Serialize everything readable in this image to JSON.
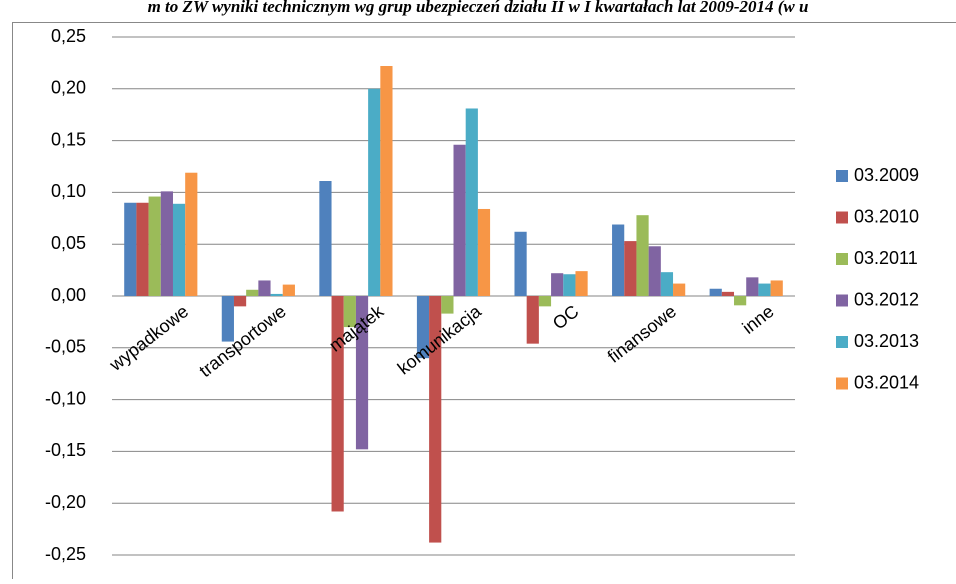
{
  "chart_data": {
    "type": "bar",
    "title": "m to ZW wyniki technicznym wg grup ubezpieczeń działu II w I kwartałach lat 2009-2014 (w u",
    "categories": [
      "wypadkowe",
      "transportowe",
      "majątek",
      "komunikacja",
      "OC",
      "finansowe",
      "inne"
    ],
    "series": [
      {
        "name": "03.2009",
        "color": "#4f81bd",
        "values": [
          0.09,
          -0.044,
          0.111,
          -0.06,
          0.062,
          0.069,
          0.007
        ]
      },
      {
        "name": "03.2010",
        "color": "#c0504d",
        "values": [
          0.09,
          -0.01,
          -0.208,
          -0.238,
          -0.046,
          0.053,
          0.004
        ]
      },
      {
        "name": "03.2011",
        "color": "#9bbb59",
        "values": [
          0.096,
          0.006,
          -0.03,
          -0.017,
          -0.01,
          0.078,
          -0.009
        ]
      },
      {
        "name": "03.2012",
        "color": "#8064a2",
        "values": [
          0.101,
          0.015,
          -0.148,
          0.146,
          0.022,
          0.048,
          0.018
        ]
      },
      {
        "name": "03.2013",
        "color": "#4bacc6",
        "values": [
          0.089,
          0.002,
          0.2,
          0.181,
          0.021,
          0.023,
          0.012
        ]
      },
      {
        "name": "03.2014",
        "color": "#f79646",
        "values": [
          0.119,
          0.011,
          0.222,
          0.084,
          0.024,
          0.012,
          0.015
        ]
      }
    ],
    "ylim": [
      -0.25,
      0.25
    ],
    "yticks": [
      {
        "value": -0.25,
        "label": "-0,25"
      },
      {
        "value": -0.2,
        "label": "-0,20"
      },
      {
        "value": -0.15,
        "label": "-0,15"
      },
      {
        "value": -0.1,
        "label": "-0,10"
      },
      {
        "value": -0.05,
        "label": "-0,05"
      },
      {
        "value": 0,
        "label": "0,00"
      },
      {
        "value": 0.05,
        "label": "0,05"
      },
      {
        "value": 0.1,
        "label": "0,10"
      },
      {
        "value": 0.15,
        "label": "0,15"
      },
      {
        "value": 0.2,
        "label": "0,20"
      },
      {
        "value": 0.25,
        "label": "0,25"
      }
    ],
    "grid": true,
    "legend": "right"
  }
}
